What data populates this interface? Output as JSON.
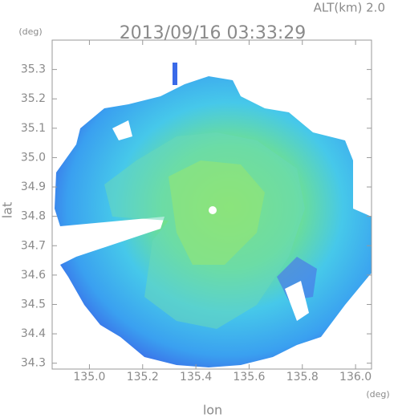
{
  "chart_data": {
    "type": "radar-field",
    "title": "2013/09/16 03:33:29",
    "altitude_label": "ALT(km) 2.0",
    "y_unit": "(deg)",
    "x_unit": "(deg)",
    "ylabel": "lat",
    "xlabel": "lon",
    "xlim": [
      134.86,
      136.06
    ],
    "xticks": [
      {
        "value": 135,
        "label": "135.0"
      },
      135.2,
      135.4,
      135.6,
      135.8,
      {
        "value": 136,
        "label": "136.0"
      }
    ],
    "ylim": [
      34.28,
      35.4
    ],
    "yticks": [
      34.3,
      34.4,
      34.5,
      34.6,
      34.7,
      34.8,
      34.9,
      {
        "value": 35,
        "label": "35.0"
      },
      35.1,
      35.2,
      35.3
    ]
  }
}
